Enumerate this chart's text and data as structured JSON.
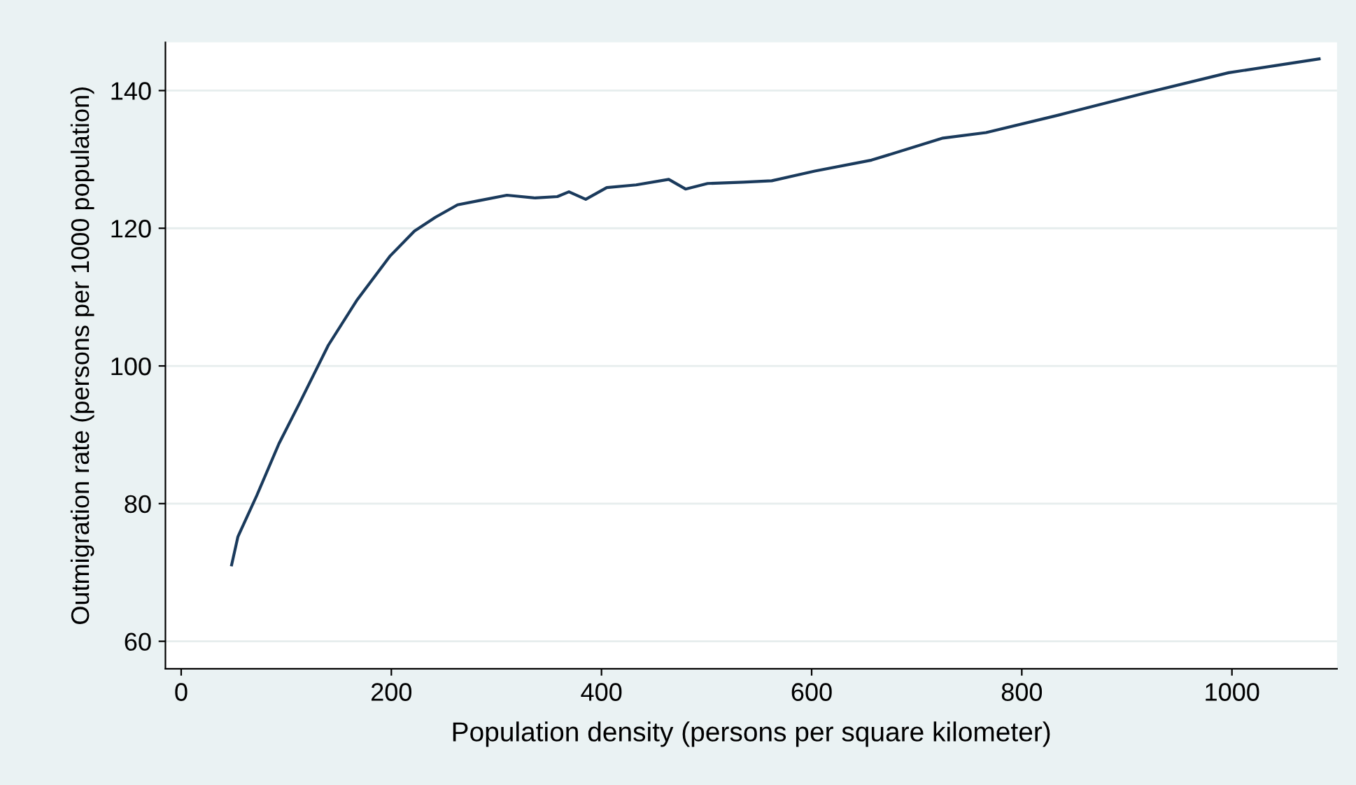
{
  "chart_data": {
    "type": "line",
    "xlabel": "Population density (persons per square kilometer)",
    "ylabel": "Outmigration rate (persons per 1000 population)",
    "x": [
      48,
      54,
      72,
      93,
      113,
      140,
      167,
      199,
      222,
      242,
      263,
      283,
      310,
      337,
      358,
      369,
      385,
      405,
      433,
      464,
      480,
      501,
      535,
      562,
      603,
      657,
      725,
      766,
      834,
      916,
      997,
      1083
    ],
    "series": [
      {
        "color": "#1a3a5c",
        "values": [
          71.1,
          75.2,
          81.2,
          88.7,
          94.7,
          103,
          109.5,
          116,
          119.6,
          121.6,
          123.4,
          124,
          124.8,
          124.4,
          124.6,
          125.3,
          124.2,
          125.9,
          126.3,
          127.1,
          125.7,
          126.5,
          126.7,
          126.9,
          128.3,
          129.9,
          133.1,
          133.9,
          136.4,
          139.6,
          142.6,
          144.6
        ]
      }
    ],
    "xlim": [
      -15,
      1100
    ],
    "ylim": [
      56,
      147
    ],
    "xticks": [
      0,
      200,
      400,
      600,
      800,
      1000
    ],
    "yticks": [
      60,
      80,
      100,
      120,
      140
    ],
    "grid": "y",
    "marker": "none",
    "line_style": "solid"
  }
}
